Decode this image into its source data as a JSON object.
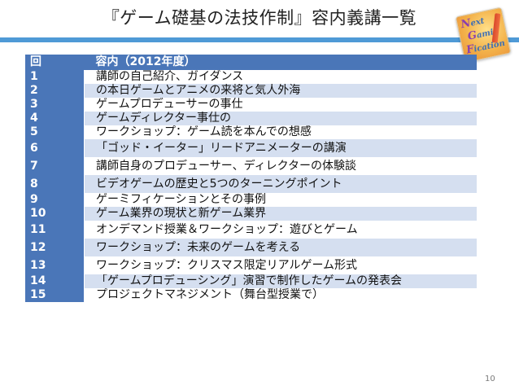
{
  "slide": {
    "title": "『ゲーム礎基の法技作制』容内義講一覧",
    "page_number": "10"
  },
  "logo": {
    "line1_cap": "N",
    "line1": "ext",
    "line2_cap": "G",
    "line2": "ami",
    "line3_cap": "F",
    "line3": "ication"
  },
  "table": {
    "header": {
      "num": "回",
      "topic": "容内（2012年度）"
    },
    "rows": [
      {
        "num": "1",
        "topic": "講師の自己紹介、ガイダンス"
      },
      {
        "num": "2",
        "topic": "の本日ゲームとアニメの来将と気人外海"
      },
      {
        "num": "3",
        "topic": "ゲームプロデューサーの事仕"
      },
      {
        "num": "4",
        "topic": "ゲームディレクター事仕の"
      },
      {
        "num": "5",
        "topic": "ワークショップ：ゲーム読を本んでの想感"
      },
      {
        "num": "6",
        "topic": "「ゴッド・イーター」リードアニメーターの講演"
      },
      {
        "num": "7",
        "topic": "講師自身のプロデューサー、ディレクターの体験談"
      },
      {
        "num": "8",
        "topic": "ビデオゲームの歴史と5つのターニングポイント"
      },
      {
        "num": "9",
        "topic": "ゲーミフィケーションとその事例"
      },
      {
        "num": "10",
        "topic": "ゲーム業界の現状と新ゲーム業界"
      },
      {
        "num": "11",
        "topic": "オンデマンド授業＆ワークショップ：遊びとゲーム"
      },
      {
        "num": "12",
        "topic": "ワークショップ：未来のゲームを考える"
      },
      {
        "num": "13",
        "topic": "ワークショップ：クリスマス限定リアルゲーム形式"
      },
      {
        "num": "14",
        "topic": "「ゲームプロデューシング」演習で制作したゲームの発表会"
      },
      {
        "num": "15",
        "topic": "プロジェクトマネジメント（舞台型授業で）"
      }
    ]
  }
}
